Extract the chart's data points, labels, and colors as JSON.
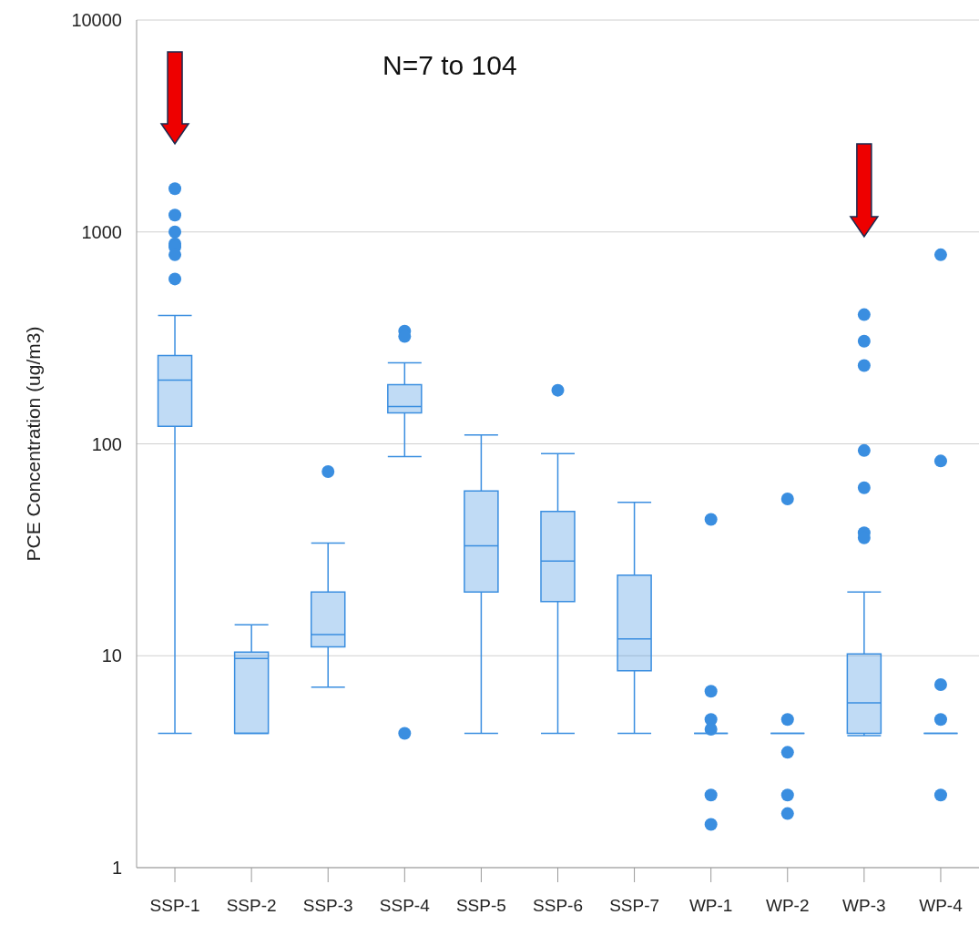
{
  "chart_data": {
    "type": "box",
    "ylabel": "PCE Concentration (ug/m3)",
    "annotations": [
      "N=7 to 104"
    ],
    "categories": [
      "SSP-1",
      "SSP-2",
      "SSP-3",
      "SSP-4",
      "SSP-5",
      "SSP-6",
      "SSP-7",
      "WP-1",
      "WP-2",
      "WP-3",
      "WP-4"
    ],
    "color": "#3a8ee0",
    "boxes": [
      {
        "low": 4.3,
        "q1": 121,
        "median": 200,
        "q3": 261,
        "high": 403,
        "outliers": [
          1600,
          1200,
          1000,
          880,
          850,
          780,
          600
        ]
      },
      {
        "low": 4.3,
        "q1": 4.3,
        "median": 9.7,
        "q3": 10.4,
        "high": 14
      },
      {
        "low": 7.1,
        "q1": 11,
        "median": 12.6,
        "q3": 20,
        "high": 34,
        "outliers": [
          74
        ]
      },
      {
        "low": 87,
        "q1": 140,
        "median": 150,
        "q3": 190,
        "high": 241,
        "outliers": [
          340,
          321,
          4.3
        ]
      },
      {
        "low": 4.3,
        "q1": 20,
        "median": 33,
        "q3": 60,
        "high": 110
      },
      {
        "low": 4.3,
        "q1": 18,
        "median": 28,
        "q3": 48,
        "high": 90,
        "outliers": [
          179
        ]
      },
      {
        "low": 4.3,
        "q1": 8.5,
        "median": 12,
        "q3": 24,
        "high": 53
      },
      {
        "low": 4.3,
        "q1": 4.3,
        "median": 4.3,
        "q3": 4.3,
        "high": 4.3,
        "outliers": [
          44,
          6.8,
          5,
          4.5,
          2.2,
          1.6
        ]
      },
      {
        "low": 4.3,
        "q1": 4.3,
        "median": 4.3,
        "q3": 4.3,
        "high": 4.3,
        "outliers": [
          55,
          5,
          3.5,
          2.2,
          1.8
        ]
      },
      {
        "low": 4.2,
        "q1": 4.3,
        "median": 6,
        "q3": 10.2,
        "high": 20,
        "outliers": [
          407,
          305,
          234,
          93,
          62,
          38,
          36
        ]
      },
      {
        "low": 4.3,
        "q1": 4.3,
        "median": 4.3,
        "q3": 4.3,
        "high": 4.3,
        "outliers": [
          780,
          83,
          7.3,
          5,
          2.2
        ]
      }
    ],
    "log": true,
    "ylim": [
      1,
      10000
    ],
    "yticks": [
      1,
      10,
      100,
      1000,
      10000
    ],
    "grid": "y"
  }
}
